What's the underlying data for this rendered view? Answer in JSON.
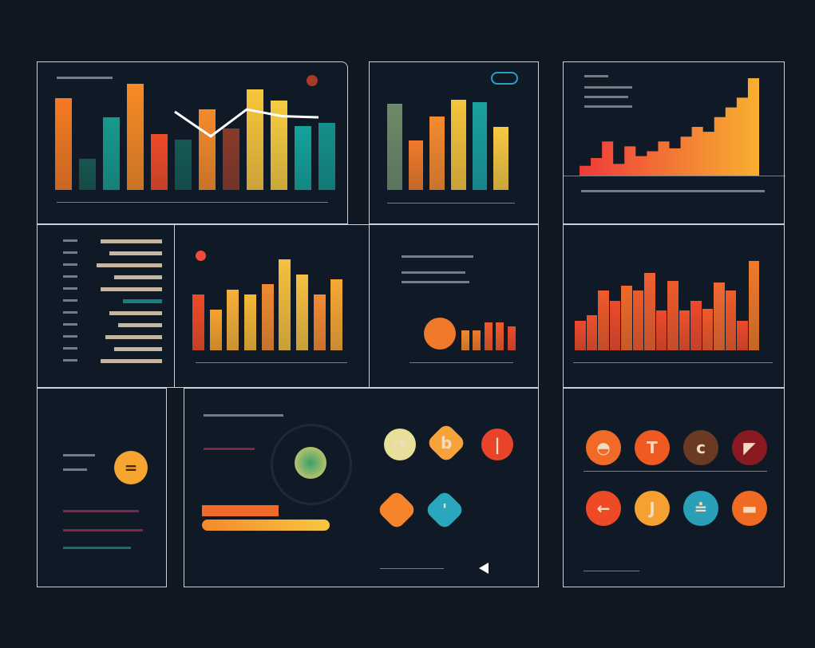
{
  "colors": {
    "background": "#0f1722",
    "panel": "#101a26",
    "border": "#c9d0d8",
    "orange": "#f7922a",
    "red": "#ee4a2a",
    "yellow": "#f7c842",
    "teal": "#1a9c94"
  },
  "charts": [
    {
      "id": "top-left",
      "type": "bar",
      "values": [
        82,
        28,
        65,
        95,
        50,
        45,
        72,
        55,
        90,
        80,
        57,
        60
      ],
      "colors": [
        "#f57a22",
        "#17564f",
        "#169a8e",
        "#f88a25",
        "#ef4a26",
        "#155a52",
        "#f58a2a",
        "#8a3a2a",
        "#f8c63c",
        "#f7cc40",
        "#14a29a",
        "#14908a"
      ],
      "line": [
        70,
        48,
        72,
        66,
        65
      ]
    },
    {
      "id": "top-middle",
      "type": "bar",
      "values": [
        78,
        45,
        67,
        82,
        80,
        57
      ],
      "colors": [
        "#6f8a6a",
        "#f07a2a",
        "#f58a30",
        "#f6c43c",
        "#1aa0a0",
        "#f7c842"
      ]
    },
    {
      "id": "top-right",
      "type": "area",
      "values": [
        10,
        18,
        35,
        12,
        30,
        20,
        25,
        35,
        28,
        40,
        50,
        45,
        60,
        70,
        80,
        100
      ]
    },
    {
      "id": "mid-left",
      "type": "bar",
      "values": [
        55,
        40,
        60,
        55,
        65,
        90,
        75,
        55,
        70
      ],
      "colors": [
        "#ef4a26",
        "#f8a22c",
        "#f7b03a",
        "#f6b836",
        "#f08a30",
        "#f7c03c",
        "#f6c040",
        "#f48a30",
        "#f7a834"
      ]
    },
    {
      "id": "mid-center",
      "type": "bar",
      "values": [
        25,
        25,
        35,
        35,
        30
      ],
      "colors": [
        "#f48a30",
        "#f07a2a",
        "#ee5a2a",
        "#ef5a28",
        "#ee4a2a"
      ]
    },
    {
      "id": "mid-right",
      "type": "bar",
      "values": [
        30,
        35,
        60,
        50,
        65,
        60,
        78,
        40,
        70,
        40,
        50,
        42,
        68,
        60,
        30,
        90
      ],
      "colors": [
        "#ee4a2a",
        "#ef5028",
        "#f05a2a",
        "#ee4a2a",
        "#f06a2a",
        "#ef5a2a",
        "#f06030",
        "#ee4a2a",
        "#ef5a2a",
        "#f05028",
        "#ee4a2a",
        "#ef5a2a",
        "#f06a30",
        "#f05a2a",
        "#ee4a2a",
        "#f07a2a"
      ]
    }
  ],
  "list_progress": [
    0.7,
    0.6,
    0.75,
    0.55,
    0.7,
    0.45,
    0.6,
    0.5,
    0.65,
    0.55,
    0.7
  ],
  "progress_bars": [
    0.6,
    1.0
  ],
  "icons_left": [
    {
      "shape": "circle",
      "color": "#e8df9a",
      "glyph": "◔"
    },
    {
      "shape": "diamond",
      "color": "#f5a33a",
      "glyph": "b"
    },
    {
      "shape": "circle",
      "color": "#e9442a",
      "glyph": "|"
    },
    {
      "shape": "diamond",
      "color": "#f5842a",
      "glyph": ""
    },
    {
      "shape": "diamond",
      "color": "#2aa6bd",
      "glyph": "'"
    }
  ],
  "icons_right": [
    {
      "color": "#f06a28",
      "glyph": "◓"
    },
    {
      "color": "#ee5a22",
      "glyph": "T"
    },
    {
      "color": "#6a3a22",
      "glyph": "c"
    },
    {
      "color": "#8a1a22",
      "glyph": "◤"
    },
    {
      "color": "#ee4a26",
      "glyph": "←"
    },
    {
      "color": "#f5a030",
      "glyph": "J"
    },
    {
      "color": "#2aa0b8",
      "glyph": "≐"
    },
    {
      "color": "#f06a22",
      "glyph": "▬"
    }
  ]
}
